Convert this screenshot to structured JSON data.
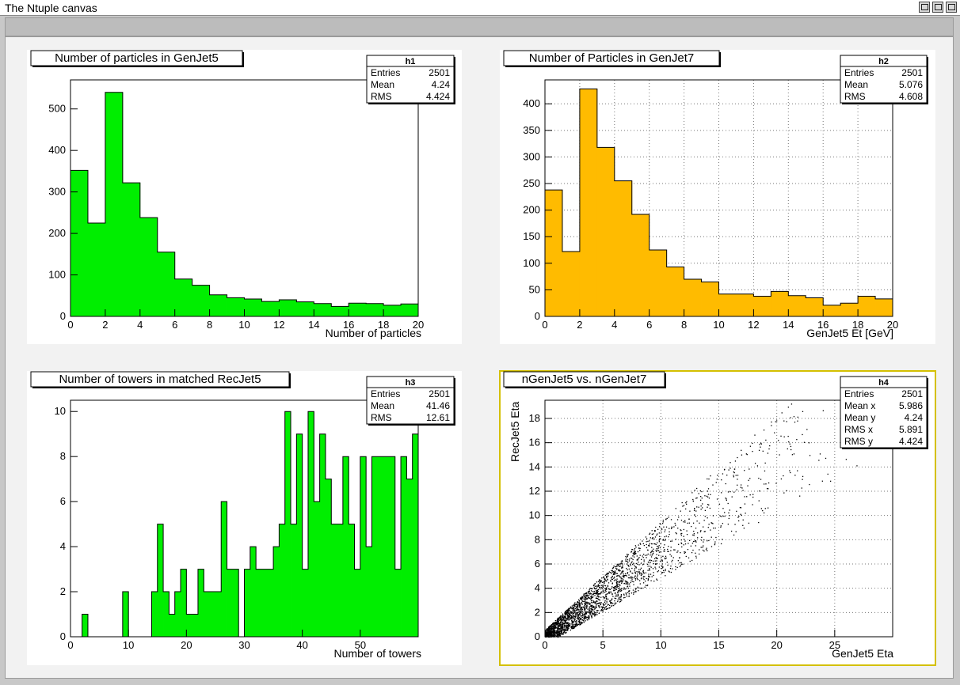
{
  "window": {
    "title": "The Ntuple canvas"
  },
  "chart_data": [
    {
      "type": "bar",
      "title": "Number of particles in GenJet5",
      "xlabel": "Number of particles",
      "ylabel": "",
      "xlim": [
        0,
        20
      ],
      "ylim": [
        0,
        570
      ],
      "x_ticks": [
        0,
        2,
        4,
        6,
        8,
        10,
        12,
        14,
        16,
        18,
        20
      ],
      "y_ticks": [
        0,
        100,
        200,
        300,
        400,
        500
      ],
      "grid": false,
      "color": "#00ee00",
      "bins": {
        "min": 0,
        "max": 20,
        "values": [
          352,
          225,
          540,
          322,
          238,
          155,
          90,
          75,
          52,
          45,
          42,
          36,
          40,
          35,
          31,
          24,
          32,
          31,
          27,
          30
        ]
      },
      "stats": {
        "name": "h1",
        "rows": [
          {
            "label": "Entries",
            "value": "2501"
          },
          {
            "label": "Mean",
            "value": "4.24"
          },
          {
            "label": "RMS",
            "value": "4.424"
          }
        ]
      }
    },
    {
      "type": "bar",
      "title": "Number of Particles in GenJet7",
      "xlabel": "GenJet5 Et [GeV]",
      "ylabel": "",
      "xlim": [
        0,
        20
      ],
      "ylim": [
        0,
        445
      ],
      "x_ticks": [
        0,
        2,
        4,
        6,
        8,
        10,
        12,
        14,
        16,
        18,
        20
      ],
      "y_ticks": [
        0,
        50,
        100,
        150,
        200,
        250,
        300,
        350,
        400
      ],
      "grid": true,
      "color": "#ffbb00",
      "bins": {
        "min": 0,
        "max": 20,
        "values": [
          238,
          122,
          428,
          318,
          255,
          192,
          125,
          93,
          70,
          65,
          42,
          42,
          38,
          47,
          39,
          35,
          21,
          25,
          38,
          33
        ]
      },
      "stats": {
        "name": "h2",
        "rows": [
          {
            "label": "Entries",
            "value": "2501"
          },
          {
            "label": "Mean",
            "value": "5.076"
          },
          {
            "label": "RMS",
            "value": "4.608"
          }
        ]
      }
    },
    {
      "type": "bar",
      "title": "Number of towers in matched RecJet5",
      "xlabel": "Number of towers",
      "ylabel": "",
      "xlim": [
        0,
        60
      ],
      "ylim": [
        0,
        10.5
      ],
      "x_ticks": [
        0,
        10,
        20,
        30,
        40,
        50
      ],
      "y_ticks": [
        0,
        2,
        4,
        6,
        8,
        10
      ],
      "grid": false,
      "color": "#00ee00",
      "bins": {
        "min": 0,
        "max": 60,
        "values": [
          0,
          0,
          1,
          0,
          0,
          0,
          0,
          0,
          0,
          2,
          0,
          0,
          0,
          0,
          2,
          5,
          2,
          1,
          2,
          3,
          1,
          1,
          3,
          2,
          2,
          2,
          6,
          3,
          3,
          0,
          3,
          4,
          3,
          3,
          3,
          4,
          5,
          10,
          5,
          9,
          3,
          10,
          6,
          9,
          7,
          5,
          5,
          8,
          5,
          3,
          8,
          4,
          8,
          8,
          8,
          8,
          3,
          8,
          7,
          9
        ]
      },
      "stats": {
        "name": "h3",
        "rows": [
          {
            "label": "Entries",
            "value": "2501"
          },
          {
            "label": "Mean",
            "value": "41.46"
          },
          {
            "label": "RMS",
            "value": "12.61"
          }
        ]
      }
    },
    {
      "type": "scatter",
      "title": "nGenJet5 vs. nGenJet7",
      "xlabel": "GenJet5 Eta",
      "ylabel": "RecJet5 Eta",
      "xlim": [
        0,
        30
      ],
      "ylim": [
        0,
        19.5
      ],
      "x_ticks": [
        0,
        5,
        10,
        15,
        20,
        25
      ],
      "y_ticks": [
        0,
        2,
        4,
        6,
        8,
        10,
        12,
        14,
        16,
        18
      ],
      "grid": true,
      "color": "#000000",
      "point_count": 2501,
      "density_trend": {
        "slope": 0.72,
        "spread_x": 5.9,
        "spread_y": 4.4
      },
      "stats": {
        "name": "h4",
        "rows": [
          {
            "label": "Entries",
            "value": "2501"
          },
          {
            "label": "Mean x",
            "value": "5.986"
          },
          {
            "label": "Mean y",
            "value": "4.24"
          },
          {
            "label": "RMS x",
            "value": "5.891"
          },
          {
            "label": "RMS y",
            "value": "4.424"
          }
        ]
      }
    }
  ]
}
